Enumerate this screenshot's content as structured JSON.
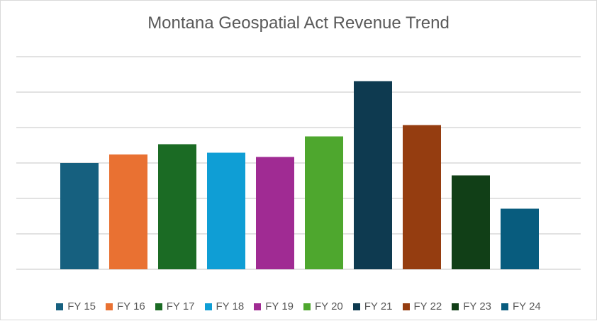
{
  "chart_data": {
    "type": "bar",
    "title": "Montana Geospatial Act Revenue Trend",
    "xlabel": "",
    "ylabel": "",
    "categories": [
      "FY 15",
      "FY 16",
      "FY 17",
      "FY 18",
      "FY 19",
      "FY 20",
      "FY 21",
      "FY 22",
      "FY 23",
      "FY 24"
    ],
    "values": [
      3.0,
      3.24,
      3.53,
      3.29,
      3.17,
      3.75,
      5.31,
      4.07,
      2.65,
      1.71
    ],
    "colors": [
      "#16607f",
      "#e97132",
      "#1b6b24",
      "#0f9ed5",
      "#a02b93",
      "#4ea72e",
      "#0e3a50",
      "#953d10",
      "#113f17",
      "#085c7e"
    ],
    "ylim": [
      0,
      6
    ],
    "grid": true,
    "y_tick_labels_shown": false,
    "legend_placement": "bottom"
  }
}
